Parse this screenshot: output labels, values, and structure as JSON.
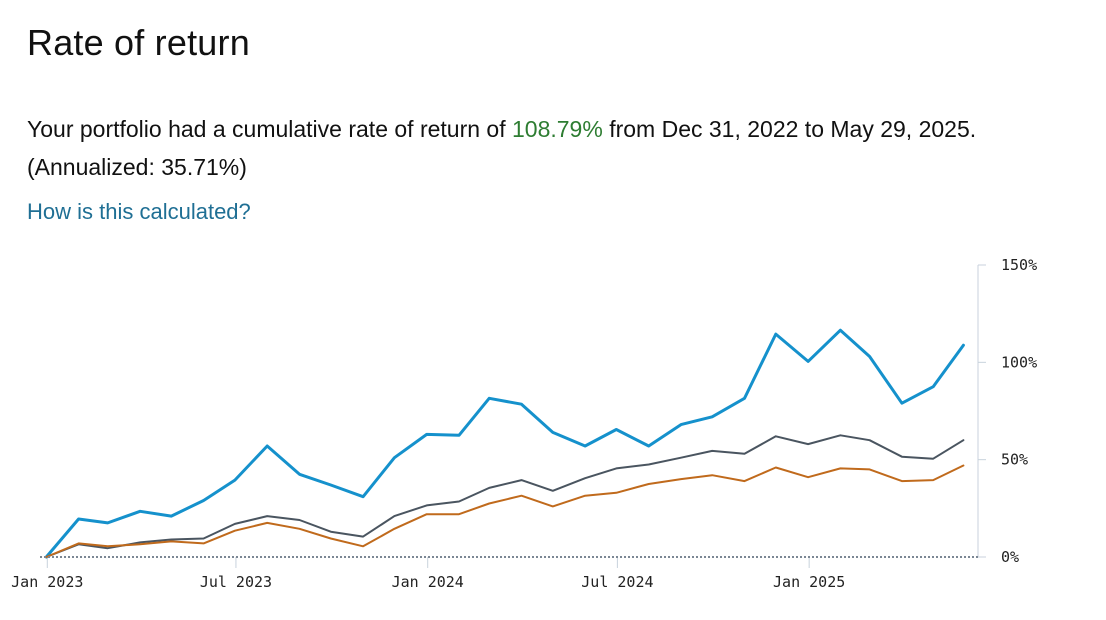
{
  "header": {
    "title": "Rate of return"
  },
  "summary": {
    "prefix": "Your portfolio had a cumulative rate of return of ",
    "return_value": "108.79%",
    "suffix": " from Dec 31, 2022 to May 29, 2025. (Annualized: 35.71%)"
  },
  "link": {
    "label": "How is this calculated?"
  },
  "colors": {
    "positive": "#2e7d32",
    "link": "#1f6f94"
  },
  "chart_data": {
    "type": "line",
    "x": [
      "2022-12-31",
      "2023-01-31",
      "2023-02-28",
      "2023-03-31",
      "2023-04-30",
      "2023-05-31",
      "2023-06-30",
      "2023-07-31",
      "2023-08-31",
      "2023-09-30",
      "2023-10-31",
      "2023-11-30",
      "2023-12-31",
      "2024-01-31",
      "2024-02-29",
      "2024-03-31",
      "2024-04-30",
      "2024-05-31",
      "2024-06-30",
      "2024-07-31",
      "2024-08-31",
      "2024-09-30",
      "2024-10-31",
      "2024-11-30",
      "2024-12-31",
      "2025-01-31",
      "2025-02-28",
      "2025-03-31",
      "2025-04-30",
      "2025-05-29"
    ],
    "series": [
      {
        "color": "#1591cc",
        "values": [
          0,
          19.5,
          17.5,
          23.5,
          21,
          29,
          39.5,
          57,
          42.5,
          37,
          31,
          51,
          63,
          62.5,
          81.5,
          78.5,
          64,
          57,
          65.5,
          57,
          68,
          72,
          81.5,
          114.5,
          100.5,
          116.5,
          103,
          79,
          87.5,
          108.8
        ]
      },
      {
        "color": "#4a5560",
        "values": [
          0,
          6.5,
          4.5,
          7.5,
          9,
          9.5,
          17,
          21,
          19,
          13,
          10.5,
          21,
          26.5,
          28.5,
          35.5,
          39.5,
          34,
          40.5,
          45.5,
          47.5,
          51,
          54.5,
          53,
          62,
          58,
          62.5,
          60,
          51.5,
          50.5,
          60
        ]
      },
      {
        "color": "#c06a1c",
        "values": [
          0,
          7,
          5.5,
          6.5,
          8,
          7,
          13.5,
          17.5,
          14.5,
          9.5,
          5.5,
          14.5,
          22,
          22,
          27.5,
          31.5,
          26,
          31.5,
          33,
          37.5,
          40,
          42,
          39,
          46,
          41,
          45.5,
          45,
          39,
          39.5,
          47
        ]
      }
    ],
    "x_ticks": [
      {
        "date": "2023-01-01",
        "label": "Jan 2023"
      },
      {
        "date": "2023-07-01",
        "label": "Jul 2023"
      },
      {
        "date": "2024-01-01",
        "label": "Jan 2024"
      },
      {
        "date": "2024-07-01",
        "label": "Jul 2024"
      },
      {
        "date": "2025-01-01",
        "label": "Jan 2025"
      }
    ],
    "y_ticks": [
      {
        "value": 0,
        "label": "0%"
      },
      {
        "value": 50,
        "label": "50%"
      },
      {
        "value": 100,
        "label": "100%"
      },
      {
        "value": 150,
        "label": "150%"
      }
    ],
    "ylim": [
      0,
      150
    ],
    "xlim": [
      "2022-12-25",
      "2025-06-12"
    ],
    "y_axis_position": "right",
    "grid": false,
    "baseline": "dotted"
  }
}
